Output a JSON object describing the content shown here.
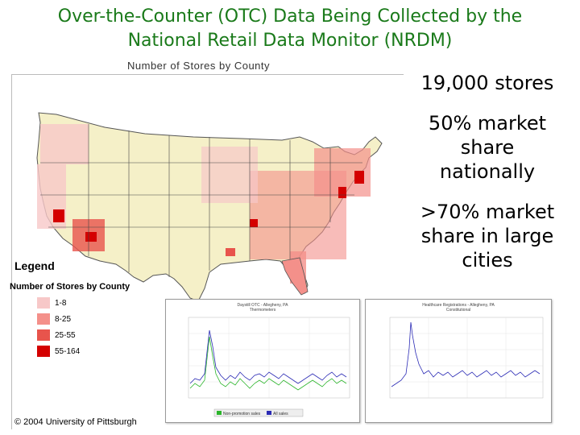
{
  "title": "Over-the-Counter (OTC) Data Being Collected by the National Retail Data Monitor (NRDM)",
  "title_lines": [
    "Over-the-Counter (OTC) Data Being Collected by the",
    "National Retail Data Monitor (NRDM)"
  ],
  "map": {
    "caption": "Number of Stores by County",
    "legend": {
      "title": "Legend",
      "subtitle": "Number of Stores by County",
      "items": [
        {
          "label": "1-8",
          "color": "#f7c8c8"
        },
        {
          "label": "8-25",
          "color": "#f4908a"
        },
        {
          "label": "25-55",
          "color": "#e8544c"
        },
        {
          "label": "55-164",
          "color": "#d40000"
        }
      ]
    },
    "copyright": "© 2004 University of Pittsburgh",
    "colors": {
      "background_state": "#f5f0c8",
      "border": "#333333"
    }
  },
  "stats": [
    "19,000 stores",
    "50% market share nationally",
    ">70% market share in large cities"
  ],
  "stat_lines": [
    [
      "19,000 stores"
    ],
    [
      "50% market",
      "share",
      "nationally"
    ],
    [
      ">70% market",
      "share in large",
      "cities"
    ]
  ],
  "charts": {
    "left": {
      "title": "Daystill OTC - Allegheny, PA",
      "subtitle": "Thermometers",
      "legend": [
        "Non-promotion sales",
        "All sales"
      ],
      "series_colors": [
        "#2bb52b",
        "#2b2bb5"
      ]
    },
    "right": {
      "title": "Healthcare Registrations - Allegheny, PA",
      "subtitle": "Constitutional",
      "series_colors": [
        "#2b2bb5"
      ]
    }
  }
}
